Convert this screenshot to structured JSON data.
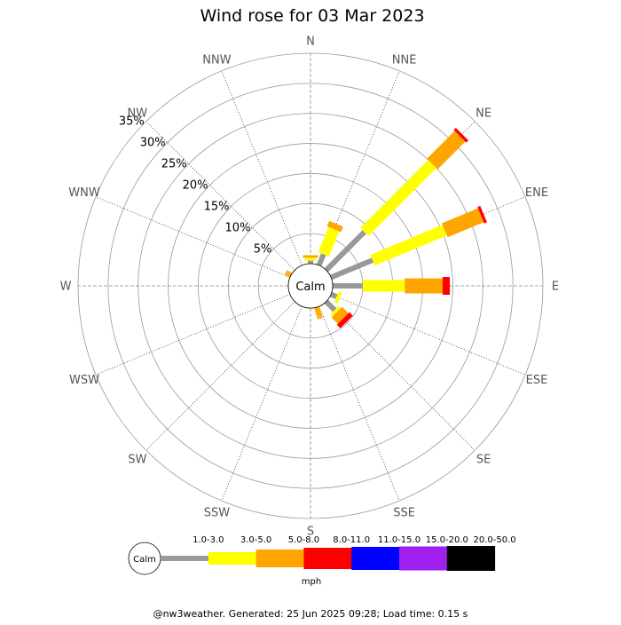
{
  "chart_data": {
    "type": "windrose",
    "title": "Wind rose for 03 Mar 2023",
    "center_label": "Calm",
    "radial_unit": "%",
    "radial_max": 35,
    "radial_ticks": [
      "5%",
      "10%",
      "15%",
      "20%",
      "25%",
      "30%",
      "35%"
    ],
    "radial_tick_values": [
      5,
      10,
      15,
      20,
      25,
      30,
      35
    ],
    "directions": [
      "N",
      "NNE",
      "NE",
      "ENE",
      "E",
      "ESE",
      "SE",
      "SSE",
      "S",
      "SSW",
      "SW",
      "WSW",
      "W",
      "WNW",
      "NW",
      "NNW"
    ],
    "speed_bins": [
      {
        "label": "1.0-3.0",
        "color": "#999999"
      },
      {
        "label": "3.0-5.0",
        "color": "#ffff00"
      },
      {
        "label": "5.0-8.0",
        "color": "#ffa500"
      },
      {
        "label": "8.0-11.0",
        "color": "#ff0000"
      },
      {
        "label": "11.0-15.0",
        "color": "#0000ff"
      },
      {
        "label": "15.0-20.0",
        "color": "#a020f0"
      },
      {
        "label": "20.0-50.0",
        "color": "#000000"
      }
    ],
    "cumulative_percent": [
      [
        0.5,
        1.0,
        1.4,
        1.4,
        1.4,
        1.4,
        1.4
      ],
      [
        2.0,
        6.5,
        7.5,
        7.5,
        7.5,
        7.5,
        7.5
      ],
      [
        9.0,
        25.0,
        31.5,
        32.0,
        32.0,
        32.0,
        32.0
      ],
      [
        7.5,
        20.5,
        27.0,
        27.5,
        27.5,
        27.5,
        27.5
      ],
      [
        5.0,
        12.0,
        18.3,
        19.5,
        19.5,
        19.5,
        19.5
      ],
      [
        1.0,
        1.6,
        1.6,
        1.6,
        1.6,
        1.6,
        1.6
      ],
      [
        2.0,
        2.5,
        4.0,
        4.8,
        4.8,
        4.8,
        4.8
      ],
      [
        0.0,
        0.0,
        0.0,
        0.0,
        0.0,
        0.0,
        0.0
      ],
      [
        0.0,
        0.0,
        0.0,
        0.0,
        0.0,
        0.0,
        0.0
      ],
      [
        0.0,
        0.0,
        0.0,
        0.0,
        0.0,
        0.0,
        0.0
      ],
      [
        0.0,
        0.0,
        0.0,
        0.0,
        0.0,
        0.0,
        0.0
      ],
      [
        0.0,
        0.0,
        0.0,
        0.0,
        0.0,
        0.0,
        0.0
      ],
      [
        0.0,
        0.0,
        0.0,
        0.0,
        0.0,
        0.0,
        0.0
      ],
      [
        0.0,
        0.0,
        0.0,
        0.0,
        0.0,
        0.0,
        0.0
      ],
      [
        0.0,
        0.0,
        0.0,
        0.0,
        0.0,
        0.0,
        0.0
      ],
      [
        0.0,
        0.0,
        0.0,
        0.0,
        0.0,
        0.0,
        0.0
      ]
    ],
    "small_bars": [
      {
        "direction": "SSE",
        "percent": 1.3,
        "color": "#ffff00"
      },
      {
        "direction": "SSE",
        "percent": 2.0,
        "color": "#ffa500"
      },
      {
        "direction": "WNW",
        "percent": 1.0,
        "color": "#ffa500"
      }
    ],
    "legend_unit": "mph",
    "legend_calm_label": "Calm"
  },
  "footer": "@nw3weather. Generated: 25 Jun 2025 09:28; Load time: 0.15 s"
}
